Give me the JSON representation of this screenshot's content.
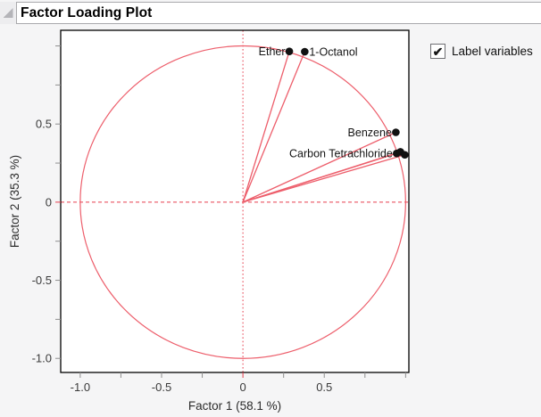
{
  "window": {
    "title": "Factor Loading Plot"
  },
  "controls": {
    "label_variables": {
      "label": "Label variables",
      "checked": true,
      "check_glyph": "✔"
    }
  },
  "colors": {
    "circle": "#ED5E6B",
    "ray": "#ED5E6B",
    "reference": "#E63E4E",
    "point": "#111111",
    "frame": "#000000",
    "tick": "#8E8E8E",
    "tick_text": "#3A3A3A",
    "axis_title_text": "#2B2B2B",
    "label_text": "#141414",
    "plot_background": "#FFFFFF"
  },
  "chart_data": {
    "type": "scatter",
    "title": "Factor Loading Plot",
    "xlabel": "Factor 1  (58.1 %)",
    "ylabel": "Factor 2  (35.3 %)",
    "xlim": [
      -1.12,
      1.02
    ],
    "ylim": [
      -1.09,
      1.1
    ],
    "grid": false,
    "unit_circle": true,
    "reference_lines": {
      "vertical_x": 0,
      "horizontal_y": 0
    },
    "tick_values": [
      -1.0,
      -0.75,
      -0.5,
      -0.25,
      0,
      0.25,
      0.5,
      0.75,
      1.0
    ],
    "x_tick_labels": [
      {
        "v": -1.0,
        "t": "-1.0"
      },
      {
        "v": -0.5,
        "t": "-0.5"
      },
      {
        "v": 0,
        "t": "0"
      },
      {
        "v": 0.5,
        "t": "0.5"
      }
    ],
    "y_tick_labels": [
      {
        "v": 0.5,
        "t": "0.5"
      },
      {
        "v": 0,
        "t": "0"
      },
      {
        "v": -0.5,
        "t": "-0.5"
      },
      {
        "v": -1.0,
        "t": "-1.0"
      }
    ],
    "points": [
      {
        "label": "Ether",
        "f1": 0.285,
        "f2": 0.965,
        "label_side": "left"
      },
      {
        "label": "1-Octanol",
        "f1": 0.38,
        "f2": 0.963,
        "label_side": "right"
      },
      {
        "label": "Benzene",
        "f1": 0.94,
        "f2": 0.447,
        "label_side": "left"
      },
      {
        "label": "Carbon Tetrachloride",
        "f1": 0.945,
        "f2": 0.312,
        "label_side": "left"
      },
      {
        "label": "",
        "f1": 0.968,
        "f2": 0.322,
        "label_side": "none"
      },
      {
        "label": "",
        "f1": 0.995,
        "f2": 0.303,
        "label_side": "none"
      }
    ]
  }
}
